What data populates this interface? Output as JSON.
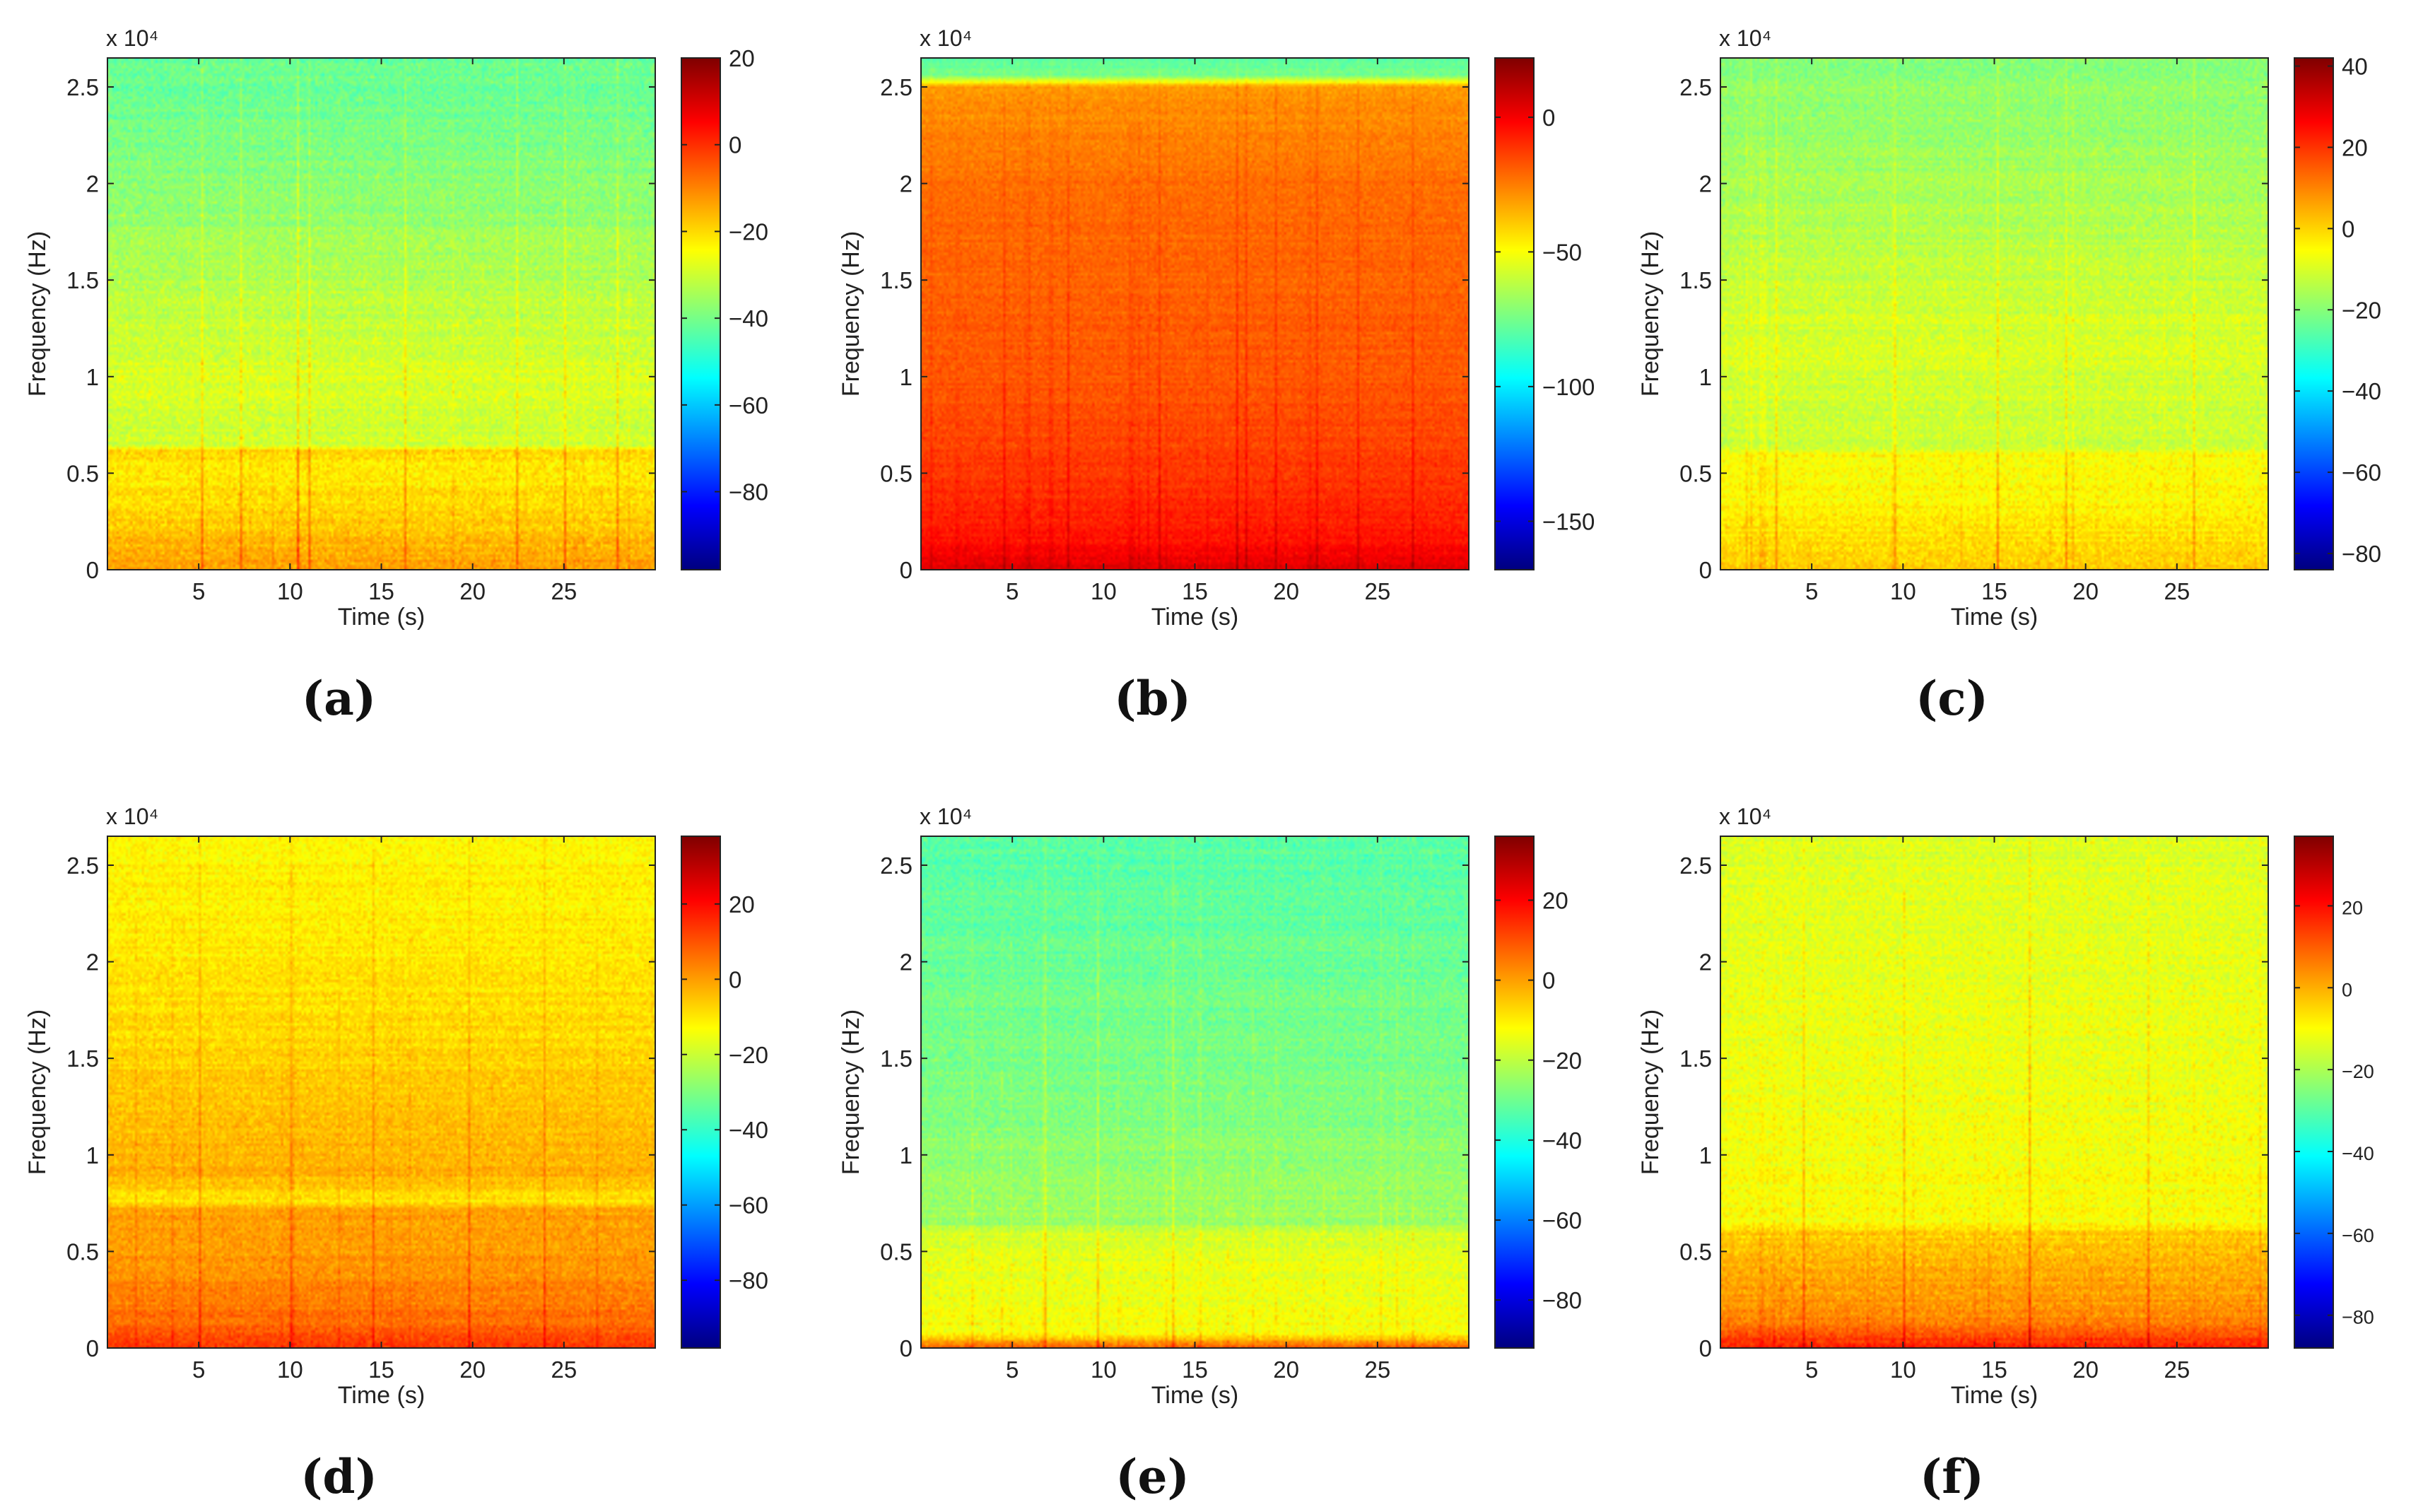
{
  "figure": {
    "colormap": "jet",
    "colormap_stops": [
      "#00007f",
      "#0000ff",
      "#007fff",
      "#00ffff",
      "#7fff7f",
      "#ffff00",
      "#ff7f00",
      "#ff0000",
      "#7f0000"
    ]
  },
  "chart_data": [
    {
      "id": "a",
      "type": "heatmap",
      "panel_label": "(a)",
      "xlabel": "Time (s)",
      "ylabel": "Frequency (Hz)",
      "y_exponent_label": "x 10⁴",
      "xlim": [
        0,
        30
      ],
      "xticks": [
        5,
        10,
        15,
        20,
        25
      ],
      "xtick_labels": [
        "5",
        "10",
        "15",
        "20",
        "25"
      ],
      "ylim": [
        0,
        26500
      ],
      "yticks": [
        0,
        5000,
        10000,
        15000,
        20000,
        25000
      ],
      "ytick_labels": [
        "0",
        "0.5",
        "1",
        "1.5",
        "2",
        "2.5"
      ],
      "colorbar": {
        "clim": [
          -98,
          20
        ],
        "ticks": [
          20,
          0,
          -20,
          -40,
          -60,
          -80
        ],
        "tick_labels": [
          "20",
          "0",
          "−20",
          "−40",
          "−60",
          "−80"
        ]
      },
      "spectral_profile": [
        {
          "freq_hz": 0,
          "level_db": -12
        },
        {
          "freq_hz": 2000,
          "level_db": -18
        },
        {
          "freq_hz": 5000,
          "level_db": -22
        },
        {
          "freq_hz": 6200,
          "level_db": -20
        },
        {
          "freq_hz": 6500,
          "level_db": -30
        },
        {
          "freq_hz": 10000,
          "level_db": -28
        },
        {
          "freq_hz": 15000,
          "level_db": -33
        },
        {
          "freq_hz": 20000,
          "level_db": -38
        },
        {
          "freq_hz": 26500,
          "level_db": -42
        }
      ],
      "band_edges_hz": [
        6300
      ],
      "transient_times_s": [
        5.2,
        7.3,
        10.4,
        11,
        16.3,
        22.5,
        25.1,
        28
      ]
    },
    {
      "id": "b",
      "type": "heatmap",
      "panel_label": "(b)",
      "xlabel": "Time (s)",
      "ylabel": "Frequency (Hz)",
      "y_exponent_label": "x 10⁴",
      "xlim": [
        0,
        30
      ],
      "xticks": [
        5,
        10,
        15,
        20,
        25
      ],
      "xtick_labels": [
        "5",
        "10",
        "15",
        "20",
        "25"
      ],
      "ylim": [
        0,
        26500
      ],
      "yticks": [
        0,
        5000,
        10000,
        15000,
        20000,
        25000
      ],
      "ytick_labels": [
        "0",
        "0.5",
        "1",
        "1.5",
        "2",
        "2.5"
      ],
      "colorbar": {
        "clim": [
          -168,
          22
        ],
        "ticks": [
          0,
          -50,
          -100,
          -150
        ],
        "tick_labels": [
          "0",
          "−50",
          "−100",
          "−150"
        ]
      },
      "spectral_profile": [
        {
          "freq_hz": 0,
          "level_db": 5
        },
        {
          "freq_hz": 1500,
          "level_db": -5
        },
        {
          "freq_hz": 5000,
          "level_db": -12
        },
        {
          "freq_hz": 10000,
          "level_db": -18
        },
        {
          "freq_hz": 20000,
          "level_db": -22
        },
        {
          "freq_hz": 25000,
          "level_db": -30
        },
        {
          "freq_hz": 25600,
          "level_db": -75
        },
        {
          "freq_hz": 26500,
          "level_db": -80
        }
      ],
      "band_edges_hz": [
        25500
      ],
      "transient_times_s": [
        4.5,
        8,
        13,
        17.3,
        17.8,
        19.5,
        21.7,
        24,
        27
      ]
    },
    {
      "id": "c",
      "type": "heatmap",
      "panel_label": "(c)",
      "xlabel": "Time (s)",
      "ylabel": "Frequency (Hz)",
      "y_exponent_label": "x 10⁴",
      "xlim": [
        0,
        30
      ],
      "xticks": [
        5,
        10,
        15,
        20,
        25
      ],
      "xtick_labels": [
        "5",
        "10",
        "15",
        "20",
        "25"
      ],
      "ylim": [
        0,
        26500
      ],
      "yticks": [
        0,
        5000,
        10000,
        15000,
        20000,
        25000
      ],
      "ytick_labels": [
        "0",
        "0.5",
        "1",
        "1.5",
        "2",
        "2.5"
      ],
      "colorbar": {
        "clim": [
          -84,
          42
        ],
        "ticks": [
          40,
          20,
          0,
          -20,
          -40,
          -60,
          -80
        ],
        "tick_labels": [
          "40",
          "20",
          "0",
          "−20",
          "−40",
          "−60",
          "−80"
        ]
      },
      "spectral_profile": [
        {
          "freq_hz": 0,
          "level_db": 2
        },
        {
          "freq_hz": 3000,
          "level_db": -4
        },
        {
          "freq_hz": 6000,
          "level_db": -5
        },
        {
          "freq_hz": 6400,
          "level_db": -12
        },
        {
          "freq_hz": 12000,
          "level_db": -10
        },
        {
          "freq_hz": 20000,
          "level_db": -16
        },
        {
          "freq_hz": 26500,
          "level_db": -20
        }
      ],
      "band_edges_hz": [
        6300
      ],
      "transient_times_s": [
        3,
        9.5,
        15.2,
        19,
        26
      ]
    },
    {
      "id": "d",
      "type": "heatmap",
      "panel_label": "(d)",
      "xlabel": "Time (s)",
      "ylabel": "Frequency (Hz)",
      "y_exponent_label": "x 10⁴",
      "xlim": [
        0,
        30
      ],
      "xticks": [
        5,
        10,
        15,
        20,
        25
      ],
      "xtick_labels": [
        "5",
        "10",
        "15",
        "20",
        "25"
      ],
      "ylim": [
        0,
        26500
      ],
      "yticks": [
        0,
        5000,
        10000,
        15000,
        20000,
        25000
      ],
      "ytick_labels": [
        "0",
        "0.5",
        "1",
        "1.5",
        "2",
        "2.5"
      ],
      "colorbar": {
        "clim": [
          -98,
          38
        ],
        "ticks": [
          20,
          0,
          -20,
          -40,
          -60,
          -80
        ],
        "tick_labels": [
          "20",
          "0",
          "−20",
          "−40",
          "−60",
          "−80"
        ]
      },
      "spectral_profile": [
        {
          "freq_hz": 0,
          "level_db": 15
        },
        {
          "freq_hz": 1500,
          "level_db": 6
        },
        {
          "freq_hz": 5000,
          "level_db": 0
        },
        {
          "freq_hz": 7200,
          "level_db": 0
        },
        {
          "freq_hz": 7600,
          "level_db": -10
        },
        {
          "freq_hz": 9000,
          "level_db": -2
        },
        {
          "freq_hz": 15000,
          "level_db": -7
        },
        {
          "freq_hz": 20000,
          "level_db": -10
        },
        {
          "freq_hz": 26500,
          "level_db": -12
        }
      ],
      "band_edges_hz": [
        7500
      ],
      "transient_times_s": [
        5,
        10,
        14.5,
        19.8,
        24
      ]
    },
    {
      "id": "e",
      "type": "heatmap",
      "panel_label": "(e)",
      "xlabel": "Time (s)",
      "ylabel": "Frequency (Hz)",
      "y_exponent_label": "x 10⁴",
      "xlim": [
        0,
        30
      ],
      "xticks": [
        5,
        10,
        15,
        20,
        25
      ],
      "xtick_labels": [
        "5",
        "10",
        "15",
        "20",
        "25"
      ],
      "ylim": [
        0,
        26500
      ],
      "yticks": [
        0,
        5000,
        10000,
        15000,
        20000,
        25000
      ],
      "ytick_labels": [
        "0",
        "0.5",
        "1",
        "1.5",
        "2",
        "2.5"
      ],
      "colorbar": {
        "clim": [
          -92,
          36
        ],
        "ticks": [
          20,
          0,
          -20,
          -40,
          -60,
          -80
        ],
        "tick_labels": [
          "20",
          "0",
          "−20",
          "−40",
          "−60",
          "−80"
        ]
      },
      "spectral_profile": [
        {
          "freq_hz": 0,
          "level_db": 10
        },
        {
          "freq_hz": 700,
          "level_db": -12
        },
        {
          "freq_hz": 5000,
          "level_db": -16
        },
        {
          "freq_hz": 6000,
          "level_db": -17
        },
        {
          "freq_hz": 6400,
          "level_db": -24
        },
        {
          "freq_hz": 15000,
          "level_db": -29
        },
        {
          "freq_hz": 26500,
          "level_db": -33
        }
      ],
      "band_edges_hz": [
        6200
      ],
      "transient_times_s": [
        6.8,
        9.7,
        13.8
      ]
    },
    {
      "id": "f",
      "type": "heatmap",
      "panel_label": "(f)",
      "xlabel": "Time (s)",
      "ylabel": "Frequency (Hz)",
      "y_exponent_label": "x 10⁴",
      "xlim": [
        0,
        30
      ],
      "xticks": [
        5,
        10,
        15,
        20,
        25
      ],
      "xtick_labels": [
        "5",
        "10",
        "15",
        "20",
        "25"
      ],
      "ylim": [
        0,
        26500
      ],
      "yticks": [
        0,
        5000,
        10000,
        15000,
        20000,
        25000
      ],
      "ytick_labels": [
        "0",
        "0.5",
        "1",
        "1.5",
        "2",
        "2.5"
      ],
      "colorbar": {
        "clim": [
          -88,
          37
        ],
        "ticks": [
          20,
          0,
          -20,
          -40,
          -60,
          -80
        ],
        "tick_labels": [
          "20",
          "0",
          "−20",
          "−40",
          "−60",
          "−80"
        ]
      },
      "spectral_profile": [
        {
          "freq_hz": 0,
          "level_db": 18
        },
        {
          "freq_hz": 1500,
          "level_db": 5
        },
        {
          "freq_hz": 5000,
          "level_db": -2
        },
        {
          "freq_hz": 6000,
          "level_db": -4
        },
        {
          "freq_hz": 6400,
          "level_db": -10
        },
        {
          "freq_hz": 15000,
          "level_db": -12
        },
        {
          "freq_hz": 26500,
          "level_db": -14
        }
      ],
      "band_edges_hz": [
        6300
      ],
      "transient_times_s": [
        4.5,
        10,
        17,
        23.5
      ]
    }
  ]
}
